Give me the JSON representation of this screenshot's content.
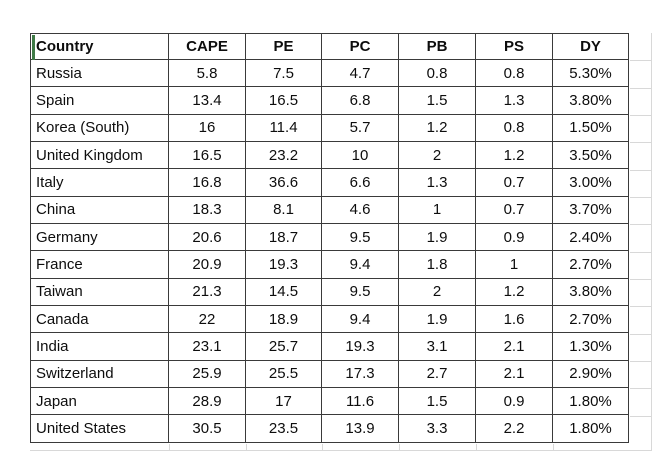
{
  "table": {
    "columns": [
      "Country",
      "CAPE",
      "PE",
      "PC",
      "PB",
      "PS",
      "DY"
    ],
    "rows": [
      [
        "Russia",
        "5.8",
        "7.5",
        "4.7",
        "0.8",
        "0.8",
        "5.30%"
      ],
      [
        "Spain",
        "13.4",
        "16.5",
        "6.8",
        "1.5",
        "1.3",
        "3.80%"
      ],
      [
        "Korea (South)",
        "16",
        "11.4",
        "5.7",
        "1.2",
        "0.8",
        "1.50%"
      ],
      [
        "United Kingdom",
        "16.5",
        "23.2",
        "10",
        "2",
        "1.2",
        "3.50%"
      ],
      [
        "Italy",
        "16.8",
        "36.6",
        "6.6",
        "1.3",
        "0.7",
        "3.00%"
      ],
      [
        "China",
        "18.3",
        "8.1",
        "4.6",
        "1",
        "0.7",
        "3.70%"
      ],
      [
        "Germany",
        "20.6",
        "18.7",
        "9.5",
        "1.9",
        "0.9",
        "2.40%"
      ],
      [
        "France",
        "20.9",
        "19.3",
        "9.4",
        "1.8",
        "1",
        "2.70%"
      ],
      [
        "Taiwan",
        "21.3",
        "14.5",
        "9.5",
        "2",
        "1.2",
        "3.80%"
      ],
      [
        "Canada",
        "22",
        "18.9",
        "9.4",
        "1.9",
        "1.6",
        "2.70%"
      ],
      [
        "India",
        "23.1",
        "25.7",
        "19.3",
        "3.1",
        "2.1",
        "1.30%"
      ],
      [
        "Switzerland",
        "25.9",
        "25.5",
        "17.3",
        "2.7",
        "2.1",
        "2.90%"
      ],
      [
        "Japan",
        "28.9",
        "17",
        "11.6",
        "1.5",
        "0.9",
        "1.80%"
      ],
      [
        "United States",
        "30.5",
        "23.5",
        "13.9",
        "3.3",
        "2.2",
        "1.80%"
      ]
    ]
  },
  "colors": {
    "background": "#ffffff",
    "text": "#0d0d0d",
    "border": "#3a3a3a",
    "accent_green": "#3f7a46",
    "gridline": "#d8d8d8"
  }
}
